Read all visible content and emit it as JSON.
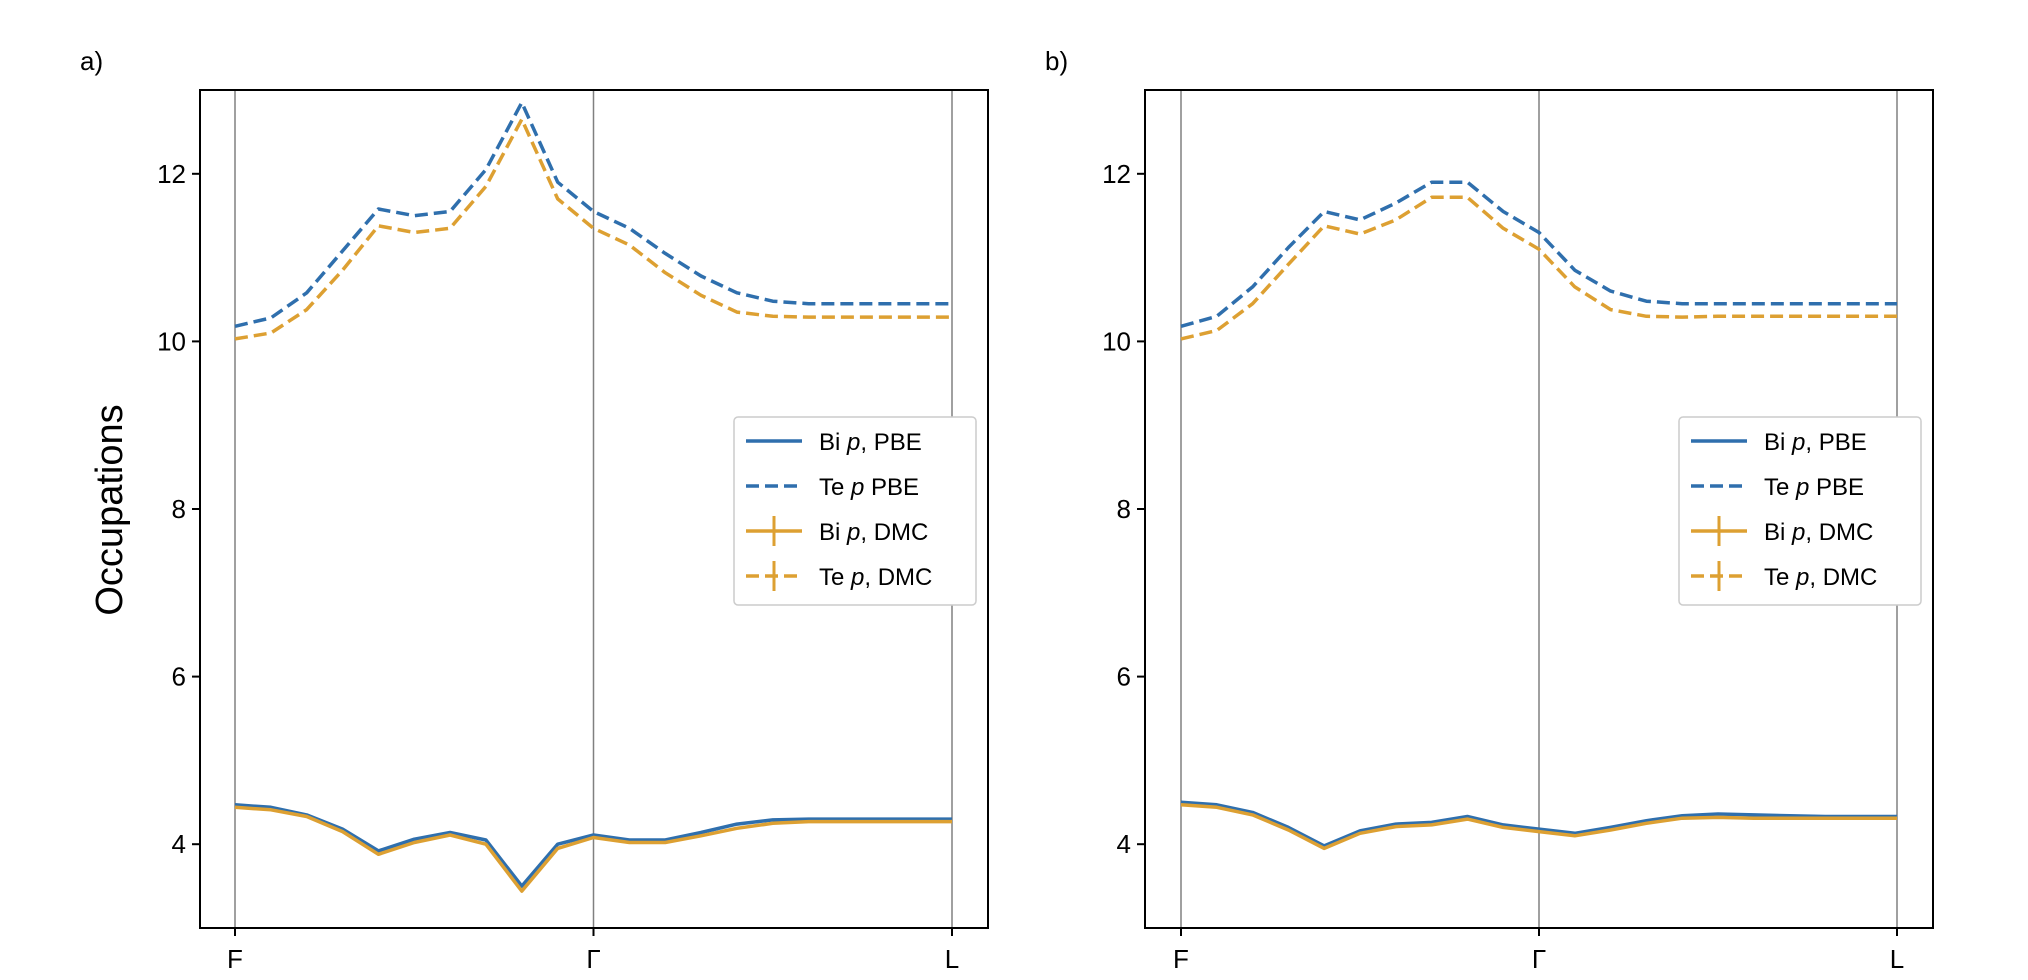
{
  "colors": {
    "pbe": "#2f6fad",
    "dmc": "#dda032",
    "kline": "#808080"
  },
  "chart_data": [
    {
      "panel": "a)",
      "type": "line",
      "ylabel": "Occupations",
      "xlabel": "",
      "ylim": [
        3.0,
        13.0
      ],
      "yticks": [
        "4",
        "6",
        "8",
        "10",
        "12"
      ],
      "xticks": [
        "F",
        "Γ",
        "L"
      ],
      "x": [
        0,
        0.05,
        0.1,
        0.15,
        0.2,
        0.25,
        0.3,
        0.35,
        0.4,
        0.45,
        0.5,
        0.55,
        0.6,
        0.65,
        0.7,
        0.75,
        0.8,
        0.85,
        0.9,
        0.95,
        1.0
      ],
      "legend": [
        "Bi p, PBE",
        "Te p PBE",
        "Bi p, DMC",
        "Te p, DMC"
      ],
      "legend_loc": "center right",
      "series": [
        {
          "name": "Bi p, PBE",
          "method": "PBE",
          "style": "solid",
          "values": [
            4.47,
            4.44,
            4.35,
            4.18,
            3.92,
            4.06,
            4.14,
            4.05,
            3.5,
            4.0,
            4.11,
            4.05,
            4.05,
            4.14,
            4.24,
            4.29,
            4.3,
            4.3,
            4.3,
            4.3,
            4.3
          ]
        },
        {
          "name": "Te p PBE",
          "method": "PBE",
          "style": "dashed",
          "values": [
            10.18,
            10.28,
            10.58,
            11.08,
            11.58,
            11.5,
            11.55,
            12.05,
            12.85,
            11.9,
            11.55,
            11.35,
            11.05,
            10.78,
            10.58,
            10.48,
            10.45,
            10.45,
            10.45,
            10.45,
            10.45
          ]
        },
        {
          "name": "Bi p, DMC",
          "method": "DMC",
          "style": "solid",
          "values": [
            4.44,
            4.41,
            4.33,
            4.15,
            3.88,
            4.02,
            4.11,
            4.0,
            3.44,
            3.95,
            4.08,
            4.02,
            4.02,
            4.1,
            4.19,
            4.25,
            4.27,
            4.27,
            4.27,
            4.27,
            4.27
          ]
        },
        {
          "name": "Te p, DMC",
          "method": "DMC",
          "style": "dashed",
          "values": [
            10.03,
            10.1,
            10.38,
            10.85,
            11.38,
            11.3,
            11.35,
            11.85,
            12.65,
            11.7,
            11.35,
            11.15,
            10.82,
            10.55,
            10.35,
            10.3,
            10.29,
            10.29,
            10.29,
            10.29,
            10.29
          ]
        }
      ]
    },
    {
      "panel": "b)",
      "type": "line",
      "ylabel": "",
      "xlabel": "",
      "ylim": [
        3.0,
        13.0
      ],
      "yticks": [
        "4",
        "6",
        "8",
        "10",
        "12"
      ],
      "xticks": [
        "F",
        "Γ",
        "L"
      ],
      "x": [
        0,
        0.05,
        0.1,
        0.15,
        0.2,
        0.25,
        0.3,
        0.35,
        0.4,
        0.45,
        0.5,
        0.55,
        0.6,
        0.65,
        0.7,
        0.75,
        0.8,
        0.85,
        0.9,
        0.95,
        1.0
      ],
      "legend": [
        "Bi p, PBE",
        "Te p PBE",
        "Bi p, DMC",
        "Te p, DMC"
      ],
      "legend_loc": "center right",
      "series": [
        {
          "name": "Bi p, PBE",
          "method": "PBE",
          "style": "solid",
          "values": [
            4.5,
            4.47,
            4.38,
            4.2,
            3.98,
            4.16,
            4.24,
            4.26,
            4.33,
            4.23,
            4.18,
            4.13,
            4.2,
            4.28,
            4.34,
            4.36,
            4.35,
            4.34,
            4.33,
            4.33,
            4.33
          ]
        },
        {
          "name": "Te p PBE",
          "method": "PBE",
          "style": "dashed",
          "values": [
            10.18,
            10.3,
            10.65,
            11.12,
            11.55,
            11.45,
            11.65,
            11.9,
            11.9,
            11.55,
            11.3,
            10.85,
            10.6,
            10.48,
            10.45,
            10.45,
            10.45,
            10.45,
            10.45,
            10.45,
            10.45
          ]
        },
        {
          "name": "Bi p, DMC",
          "method": "DMC",
          "style": "solid",
          "values": [
            4.47,
            4.44,
            4.35,
            4.17,
            3.95,
            4.13,
            4.21,
            4.23,
            4.3,
            4.2,
            4.15,
            4.1,
            4.17,
            4.25,
            4.31,
            4.32,
            4.31,
            4.31,
            4.31,
            4.31,
            4.31
          ]
        },
        {
          "name": "Te p, DMC",
          "method": "DMC",
          "style": "dashed",
          "values": [
            10.03,
            10.13,
            10.45,
            10.92,
            11.38,
            11.28,
            11.45,
            11.72,
            11.72,
            11.35,
            11.1,
            10.65,
            10.38,
            10.3,
            10.29,
            10.3,
            10.3,
            10.3,
            10.3,
            10.3,
            10.3
          ]
        }
      ]
    }
  ]
}
